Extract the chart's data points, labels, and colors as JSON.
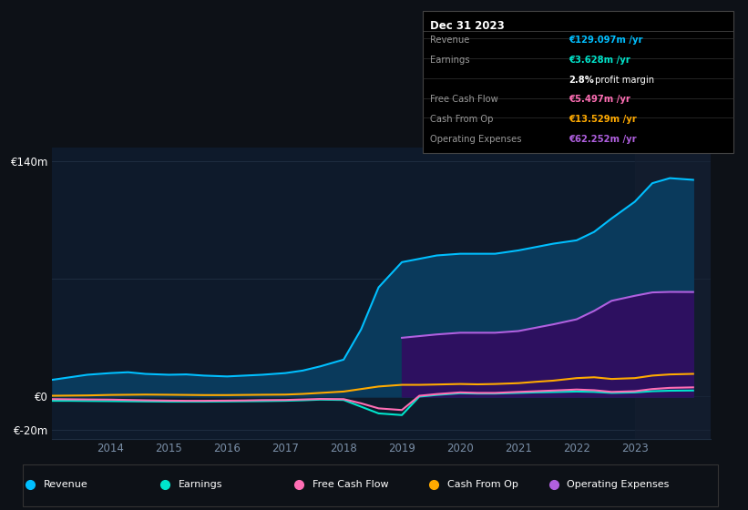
{
  "bg_color": "#0d1117",
  "plot_bg_color": "#0e1a2b",
  "grid_color": "#1e2d40",
  "years": [
    2013.0,
    2013.3,
    2013.6,
    2014.0,
    2014.3,
    2014.6,
    2015.0,
    2015.3,
    2015.6,
    2016.0,
    2016.3,
    2016.6,
    2017.0,
    2017.3,
    2017.6,
    2018.0,
    2018.3,
    2018.6,
    2019.0,
    2019.3,
    2019.6,
    2020.0,
    2020.3,
    2020.6,
    2021.0,
    2021.3,
    2021.6,
    2022.0,
    2022.3,
    2022.6,
    2023.0,
    2023.3,
    2023.6,
    2024.0
  ],
  "revenue": [
    10,
    11.5,
    13,
    14,
    14.5,
    13.5,
    13,
    13.2,
    12.5,
    12,
    12.5,
    13,
    14,
    15.5,
    18,
    22,
    40,
    65,
    80,
    82,
    84,
    85,
    85,
    85,
    87,
    89,
    91,
    93,
    98,
    106,
    116,
    127,
    130,
    129
  ],
  "earnings": [
    -2.5,
    -2.5,
    -2.6,
    -2.7,
    -2.8,
    -2.9,
    -3.0,
    -3.0,
    -3.0,
    -2.9,
    -2.8,
    -2.7,
    -2.5,
    -2.2,
    -1.8,
    -2.0,
    -6,
    -10,
    -11,
    0,
    1,
    2,
    1.8,
    1.8,
    2.2,
    2.5,
    2.7,
    3.0,
    2.8,
    2.2,
    2.5,
    3.2,
    3.5,
    3.628
  ],
  "free_cash_flow": [
    -1.5,
    -1.6,
    -1.7,
    -1.8,
    -2.0,
    -2.2,
    -2.4,
    -2.5,
    -2.5,
    -2.4,
    -2.3,
    -2.1,
    -2.0,
    -1.7,
    -1.4,
    -1.5,
    -4,
    -7,
    -8,
    0.5,
    1.5,
    2.5,
    2.2,
    2.2,
    2.8,
    3.2,
    3.6,
    4.2,
    3.8,
    2.8,
    3.2,
    4.5,
    5.2,
    5.497
  ],
  "cash_from_op": [
    0.5,
    0.6,
    0.7,
    1.0,
    1.1,
    1.2,
    1.1,
    1.0,
    0.9,
    0.9,
    1.0,
    1.1,
    1.2,
    1.6,
    2.2,
    3.0,
    4.5,
    6.0,
    7.0,
    7.0,
    7.2,
    7.5,
    7.3,
    7.5,
    8.0,
    8.8,
    9.5,
    11,
    11.5,
    10.5,
    11,
    12.5,
    13.2,
    13.529
  ],
  "operating_expenses": [
    0,
    0,
    0,
    0,
    0,
    0,
    0,
    0,
    0,
    0,
    0,
    0,
    0,
    0,
    0,
    0,
    0,
    0,
    35,
    36,
    37,
    38,
    38,
    38,
    39,
    41,
    43,
    46,
    51,
    57,
    60,
    62,
    62.3,
    62.252
  ],
  "revenue_color": "#00bfff",
  "earnings_color": "#00e5cc",
  "fcf_color": "#ff6eb4",
  "cashop_color": "#ffaa00",
  "opex_color": "#b060e0",
  "revenue_fill": "#0a3a5c",
  "opex_fill": "#2d1060",
  "ylim_min": -25,
  "ylim_max": 148,
  "xlim_min": 2013.0,
  "xlim_max": 2024.3,
  "xticks": [
    2014,
    2015,
    2016,
    2017,
    2018,
    2019,
    2020,
    2021,
    2022,
    2023
  ],
  "shade_start_year": 2023.0,
  "info_box": {
    "title": "Dec 31 2023",
    "rows": [
      {
        "label": "Revenue",
        "value": "€129.097m /yr",
        "value_color": "#00bfff"
      },
      {
        "label": "Earnings",
        "value": "€3.628m /yr",
        "value_color": "#00e5cc"
      },
      {
        "label": "",
        "value": "2.8% profit margin",
        "value_color": "#ffffff"
      },
      {
        "label": "Free Cash Flow",
        "value": "€5.497m /yr",
        "value_color": "#ff6eb4"
      },
      {
        "label": "Cash From Op",
        "value": "€13.529m /yr",
        "value_color": "#ffaa00"
      },
      {
        "label": "Operating Expenses",
        "value": "€62.252m /yr",
        "value_color": "#b060e0"
      }
    ]
  },
  "legend": [
    {
      "label": "Revenue",
      "color": "#00bfff"
    },
    {
      "label": "Earnings",
      "color": "#00e5cc"
    },
    {
      "label": "Free Cash Flow",
      "color": "#ff6eb4"
    },
    {
      "label": "Cash From Op",
      "color": "#ffaa00"
    },
    {
      "label": "Operating Expenses",
      "color": "#b060e0"
    }
  ]
}
